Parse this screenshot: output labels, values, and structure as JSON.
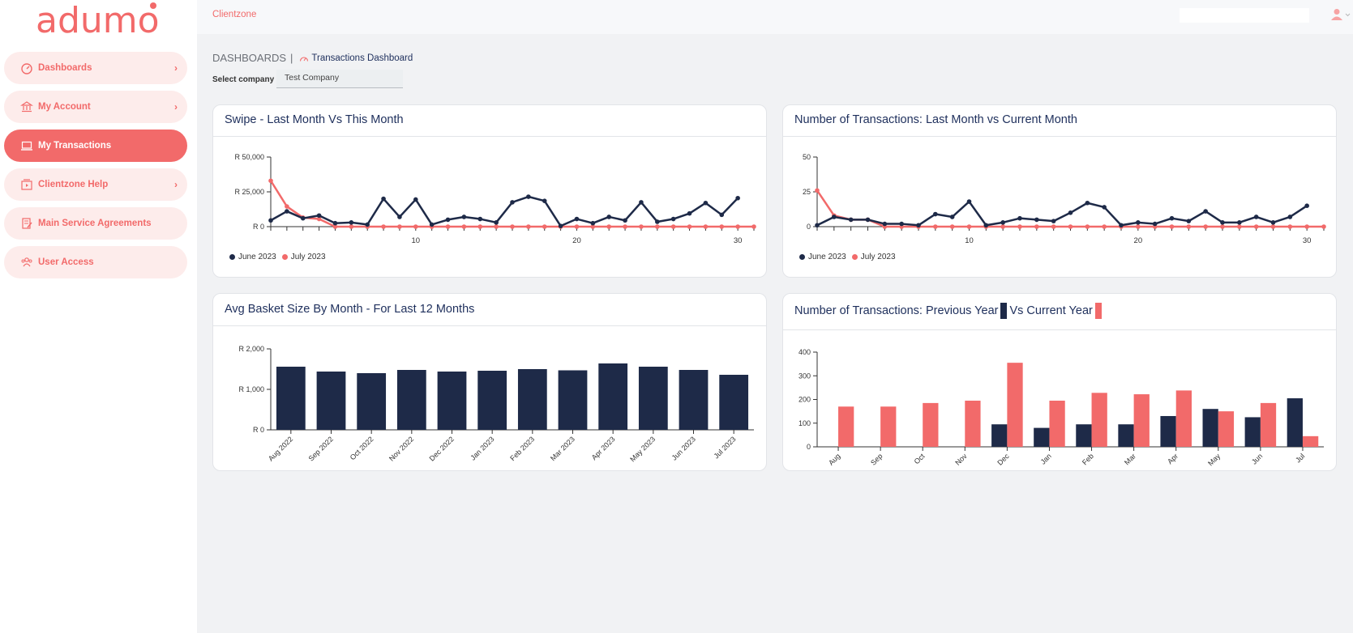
{
  "app": {
    "logo_text": "adumo",
    "topbar_brand": "Clientzone"
  },
  "colors": {
    "accent": "#f26a6a",
    "navy": "#1e2a48",
    "title": "#1e2f5c"
  },
  "sidebar": {
    "items": [
      {
        "label": "Dashboards",
        "icon": "dashboard-gauge-icon",
        "active": false,
        "has_chevron": true
      },
      {
        "label": "My Account",
        "icon": "bank-icon",
        "active": false,
        "has_chevron": true
      },
      {
        "label": "My Transactions",
        "icon": "laptop-icon",
        "active": true,
        "has_chevron": false
      },
      {
        "label": "Clientzone Help",
        "icon": "help-video-icon",
        "active": false,
        "has_chevron": true
      },
      {
        "label": "Main Service Agreements",
        "icon": "document-edit-icon",
        "active": false,
        "has_chevron": false
      },
      {
        "label": "User Access",
        "icon": "users-icon",
        "active": false,
        "has_chevron": false
      }
    ]
  },
  "header": {
    "breadcrumb_root": "DASHBOARDS",
    "breadcrumb_sep": "|",
    "breadcrumb_current": "Transactions Dashboard",
    "company_label": "Select company",
    "company_value": "Test Company"
  },
  "cards": {
    "swipe_title": "Swipe - Last Month Vs This Month",
    "txcount_title": "Number of Transactions: Last Month vs Current Month",
    "basket_title": "Avg Basket Size By Month - For Last 12 Months",
    "yoy_title_part1": "Number of Transactions: Previous Year",
    "yoy_title_part2": "Vs Current Year"
  },
  "chart_data": [
    {
      "id": "swipe",
      "type": "line",
      "title": "Swipe - Last Month Vs This Month",
      "x": [
        1,
        2,
        3,
        4,
        5,
        6,
        7,
        8,
        9,
        10,
        11,
        12,
        13,
        14,
        15,
        16,
        17,
        18,
        19,
        20,
        21,
        22,
        23,
        24,
        25,
        26,
        27,
        28,
        29,
        30,
        31
      ],
      "xticks": [
        10,
        20,
        30
      ],
      "yticks": [
        0,
        25000,
        50000
      ],
      "ytick_labels": [
        "R 0",
        "R 25,000",
        "R 50,000"
      ],
      "ylim": [
        0,
        50000
      ],
      "series": [
        {
          "name": "June 2023",
          "color": "#1e2a48",
          "values": [
            4500,
            11000,
            6000,
            8000,
            2500,
            3000,
            1500,
            20000,
            7000,
            19500,
            1500,
            5000,
            7000,
            5500,
            3000,
            17500,
            21500,
            18500,
            500,
            5500,
            2500,
            7000,
            4500,
            17500,
            3500,
            5500,
            9500,
            17000,
            8500,
            20500,
            null
          ]
        },
        {
          "name": "July 2023",
          "color": "#f26a6a",
          "values": [
            33000,
            14500,
            6500,
            5500,
            0,
            0,
            0,
            0,
            0,
            0,
            0,
            0,
            0,
            0,
            0,
            0,
            0,
            0,
            0,
            0,
            0,
            0,
            0,
            0,
            0,
            0,
            0,
            0,
            0,
            0,
            0
          ]
        }
      ]
    },
    {
      "id": "txcount",
      "type": "line",
      "title": "Number of Transactions: Last Month vs Current Month",
      "x": [
        1,
        2,
        3,
        4,
        5,
        6,
        7,
        8,
        9,
        10,
        11,
        12,
        13,
        14,
        15,
        16,
        17,
        18,
        19,
        20,
        21,
        22,
        23,
        24,
        25,
        26,
        27,
        28,
        29,
        30,
        31
      ],
      "xticks": [
        10,
        20,
        30
      ],
      "yticks": [
        0,
        25,
        50
      ],
      "ytick_labels": [
        "0",
        "25",
        "50"
      ],
      "ylim": [
        0,
        50
      ],
      "series": [
        {
          "name": "June 2023",
          "color": "#1e2a48",
          "values": [
            1,
            7,
            5,
            5,
            2,
            2,
            1,
            9,
            7,
            18,
            1,
            3,
            6,
            5,
            4,
            10,
            17,
            14,
            1,
            3,
            2,
            6,
            4,
            11,
            3,
            3,
            7,
            3,
            7,
            15,
            null
          ]
        },
        {
          "name": "July 2023",
          "color": "#f26a6a",
          "values": [
            26,
            8,
            5,
            5,
            0,
            0,
            0,
            0,
            0,
            0,
            0,
            0,
            0,
            0,
            0,
            0,
            0,
            0,
            0,
            0,
            0,
            0,
            0,
            0,
            0,
            0,
            0,
            0,
            0,
            0,
            0
          ]
        }
      ]
    },
    {
      "id": "basket",
      "type": "bar",
      "title": "Avg Basket Size By Month - For Last 12 Months",
      "categories": [
        "Aug 2022",
        "Sep 2022",
        "Oct 2022",
        "Nov 2022",
        "Dec 2022",
        "Jan 2023",
        "Feb 2023",
        "Mar 2023",
        "Apr 2023",
        "May 2023",
        "Jun 2023",
        "Jul 2023"
      ],
      "values": [
        1560,
        1440,
        1400,
        1480,
        1440,
        1460,
        1500,
        1470,
        1640,
        1560,
        1480,
        1360
      ],
      "yticks": [
        0,
        1000,
        2000
      ],
      "ytick_labels": [
        "R 0",
        "R 1,000",
        "R 2,000"
      ],
      "ylim": [
        0,
        2000
      ],
      "color": "#1e2a48"
    },
    {
      "id": "yoy",
      "type": "bar",
      "title": "Number of Transactions: Previous Year Vs Current Year",
      "categories": [
        "Aug",
        "Sep",
        "Oct",
        "Nov",
        "Dec",
        "Jan",
        "Feb",
        "Mar",
        "Apr",
        "May",
        "Jun",
        "Jul"
      ],
      "series": [
        {
          "name": "Previous Year",
          "color": "#1e2a48",
          "values": [
            0,
            0,
            0,
            0,
            95,
            80,
            95,
            95,
            130,
            160,
            125,
            205
          ]
        },
        {
          "name": "Current Year",
          "color": "#f26a6a",
          "values": [
            170,
            170,
            185,
            195,
            355,
            195,
            228,
            222,
            238,
            150,
            185,
            45
          ]
        }
      ],
      "yticks": [
        0,
        100,
        200,
        300,
        400
      ],
      "ytick_labels": [
        "0",
        "100",
        "200",
        "300",
        "400"
      ],
      "ylim": [
        0,
        400
      ]
    }
  ]
}
